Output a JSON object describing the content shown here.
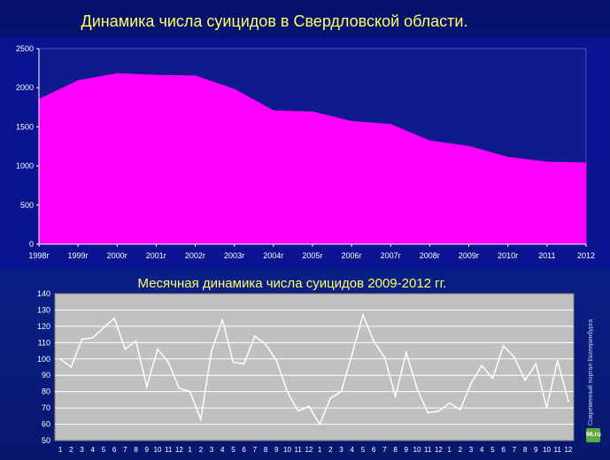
{
  "titles": {
    "main": "Динамика числа суицидов в Свердловской области.",
    "monthly": "Месячная динамика числа суицидов 2009-2012 гг."
  },
  "logo": {
    "text": "Современный портал Екатеринбурга",
    "badge": "66.ru"
  },
  "chart_data": [
    {
      "type": "area",
      "title": "Динамика числа суицидов в Свердловской области.",
      "categories": [
        "1998г",
        "1999г",
        "2000г",
        "2001г",
        "2002г",
        "2003г",
        "2004г",
        "2005г",
        "2006г",
        "2007г",
        "2008г",
        "2009г",
        "2010г",
        "2011",
        "2012"
      ],
      "values": [
        1850,
        2090,
        2180,
        2160,
        2150,
        1980,
        1705,
        1690,
        1570,
        1530,
        1320,
        1250,
        1110,
        1050,
        1040
      ],
      "ylim": [
        0,
        2500
      ],
      "yticks": [
        0,
        500,
        1000,
        1500,
        2000,
        2500
      ],
      "xlabel": "",
      "ylabel": "",
      "grid": false,
      "colors": {
        "fill": "#ff00ff",
        "plot_bg": "#0e1b8c",
        "frame": "#3d4fc6"
      }
    },
    {
      "type": "line",
      "title": "Месячная динамика числа суицидов 2009-2012 гг.",
      "categories": [
        "1",
        "2",
        "3",
        "4",
        "5",
        "6",
        "7",
        "8",
        "9",
        "10",
        "11",
        "12",
        "1",
        "2",
        "3",
        "4",
        "5",
        "6",
        "7",
        "8",
        "9",
        "10",
        "11",
        "12",
        "1",
        "2",
        "3",
        "4",
        "5",
        "6",
        "7",
        "8",
        "9",
        "10",
        "11",
        "12",
        "1",
        "2",
        "3",
        "4",
        "5",
        "6",
        "7",
        "8",
        "9",
        "10",
        "11",
        "12"
      ],
      "values": [
        100,
        95,
        112,
        113,
        119,
        125,
        106,
        111,
        83,
        106,
        98,
        82,
        80,
        63,
        105,
        124,
        98,
        97,
        114,
        109,
        99,
        80,
        68,
        71,
        60,
        76,
        80,
        103,
        127,
        111,
        101,
        77,
        104,
        82,
        67,
        68,
        73,
        69,
        85,
        96,
        88,
        108,
        101,
        87,
        97,
        70,
        99,
        74
      ],
      "ylim": [
        50,
        140
      ],
      "yticks": [
        50,
        60,
        70,
        80,
        90,
        100,
        110,
        120,
        130,
        140
      ],
      "xlabel": "",
      "ylabel": "",
      "grid": true,
      "colors": {
        "line": "#ffffff",
        "plot_bg": "#c0c0c0",
        "grid": "#ffffff"
      }
    }
  ]
}
